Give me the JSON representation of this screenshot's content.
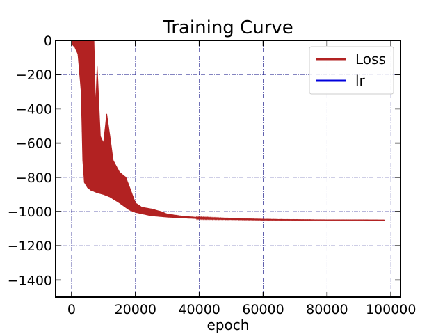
{
  "chart_data": {
    "type": "line",
    "title": "Training Curve",
    "xlabel": "epoch",
    "ylabel": "",
    "xlim": [
      -5000,
      103000
    ],
    "ylim": [
      -1500,
      0
    ],
    "xticks": [
      0,
      20000,
      40000,
      60000,
      80000,
      100000
    ],
    "yticks": [
      0,
      -200,
      -400,
      -600,
      -800,
      -1000,
      -1200,
      -1400
    ],
    "grid": true,
    "legend_position": "top-right",
    "series": [
      {
        "name": "Loss",
        "color": "#b22222",
        "lower_envelope": {
          "x": [
            0,
            1000,
            2000,
            3000,
            3500,
            4000,
            5000,
            6000,
            8000,
            10000,
            12000,
            15000,
            18000,
            20000,
            25000,
            30000,
            35000,
            40000,
            50000,
            60000,
            70000,
            80000,
            90000,
            98000
          ],
          "y": [
            -20,
            -40,
            -80,
            -300,
            -700,
            -830,
            -860,
            -875,
            -890,
            -900,
            -915,
            -950,
            -990,
            -1005,
            -1025,
            -1033,
            -1038,
            -1042,
            -1046,
            -1049,
            -1050,
            -1050,
            -1050,
            -1051
          ]
        },
        "upper_envelope": {
          "x": [
            0,
            1000,
            2000,
            3000,
            4000,
            5000,
            6000,
            7000,
            7500,
            8000,
            9000,
            10000,
            11000,
            12000,
            13000,
            15000,
            17000,
            19000,
            20000,
            22000,
            25000,
            28000,
            30000,
            35000,
            40000,
            50000,
            60000,
            70000,
            80000,
            90000,
            98000
          ],
          "y": [
            0,
            0,
            0,
            0,
            0,
            0,
            0,
            0,
            -400,
            -150,
            -560,
            -600,
            -430,
            -560,
            -700,
            -770,
            -800,
            -900,
            -950,
            -975,
            -985,
            -1000,
            -1015,
            -1028,
            -1035,
            -1042,
            -1046,
            -1048,
            -1049,
            -1049,
            -1050
          ]
        }
      },
      {
        "name": "lr",
        "color": "#0000dd",
        "x": [],
        "y": []
      }
    ]
  }
}
